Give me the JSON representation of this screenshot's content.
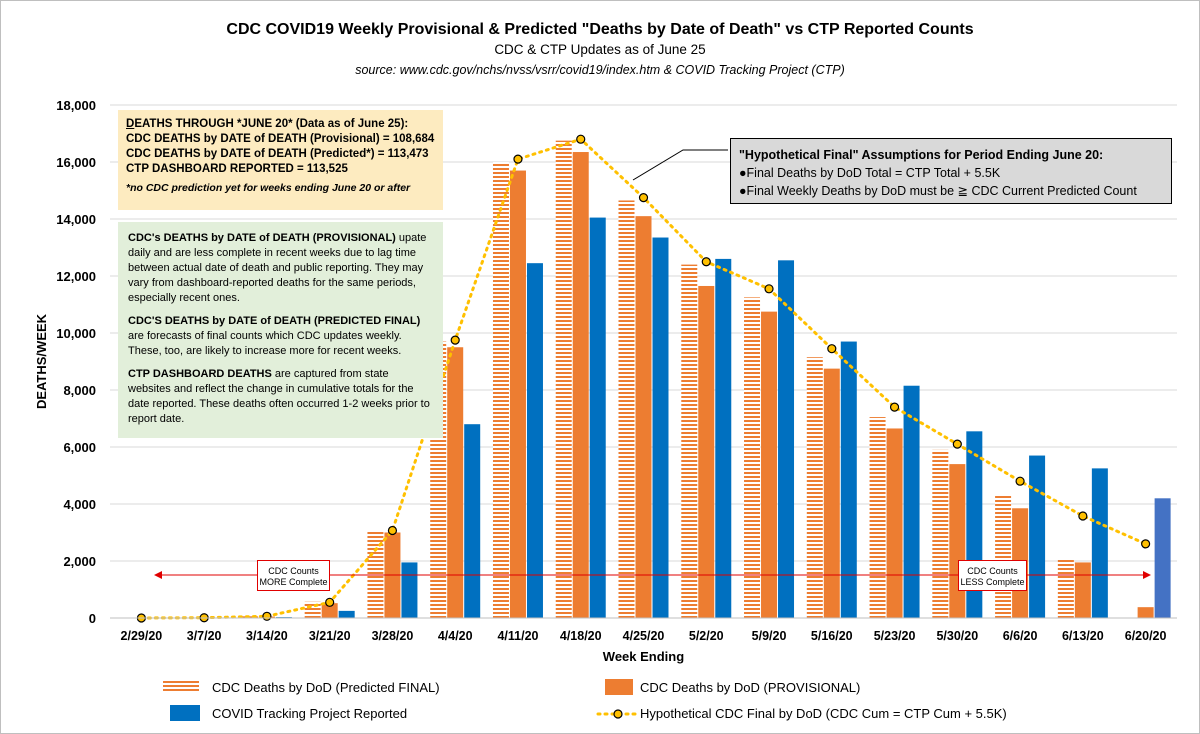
{
  "title": "CDC COVID19 Weekly Provisional & Predicted \"Deaths by Date of Death\" vs CTP Reported Counts",
  "subtitle": "CDC & CTP Updates as of June 25",
  "source": "source: www.cdc.gov/nchs/nvss/vsrr/covid19/index.htm & COVID Tracking Project (CTP)",
  "colors": {
    "predicted_final": "#ed7d31",
    "provisional": "#ed7d31",
    "ctp": "#0070c0",
    "ctp_last": "#4472c4",
    "hypothetical": "#ffc000",
    "gridline": "#d9d9d9"
  },
  "chart_data": {
    "type": "bar",
    "xlabel": "Week Ending",
    "ylabel": "DEATHS/WEEK",
    "ylim": [
      0,
      18000
    ],
    "yticks": [
      "0",
      "2,000",
      "4,000",
      "6,000",
      "8,000",
      "10,000",
      "12,000",
      "14,000",
      "16,000",
      "18,000"
    ],
    "ytick_values": [
      0,
      2000,
      4000,
      6000,
      8000,
      10000,
      12000,
      14000,
      16000,
      18000
    ],
    "grid": true,
    "legend_position": "bottom",
    "categories": [
      "2/29/20",
      "3/7/20",
      "3/14/20",
      "3/21/20",
      "3/28/20",
      "4/4/20",
      "4/11/20",
      "4/18/20",
      "4/25/20",
      "5/2/20",
      "5/9/20",
      "5/16/20",
      "5/23/20",
      "5/30/20",
      "6/6/20",
      "6/13/20",
      "6/20/20"
    ],
    "series": [
      {
        "name": "CDC Deaths by DoD (Predicted FINAL)",
        "style": "bar-striped",
        "values": [
          0,
          10,
          60,
          570,
          3070,
          9700,
          16000,
          16750,
          14650,
          12400,
          11250,
          9150,
          7050,
          5900,
          4350,
          2100,
          null
        ]
      },
      {
        "name": "CDC Deaths by DoD (PROVISIONAL)",
        "style": "bar",
        "values": [
          0,
          10,
          50,
          520,
          3000,
          9500,
          15700,
          16350,
          14100,
          11650,
          10750,
          8750,
          6650,
          5400,
          3850,
          1950,
          380
        ]
      },
      {
        "name": "COVID Tracking Project Reported",
        "style": "bar",
        "values": [
          0,
          5,
          30,
          250,
          1950,
          6800,
          12450,
          14050,
          13350,
          12600,
          12550,
          9700,
          8150,
          6550,
          5700,
          5250,
          4200
        ]
      },
      {
        "name": "Hypothetical CDC Final by DoD (CDC Cum = CTP Cum + 5.5K)",
        "style": "line-dotted",
        "values": [
          0,
          10,
          60,
          550,
          3070,
          9750,
          16100,
          16800,
          14750,
          12500,
          11550,
          9450,
          7400,
          6100,
          4800,
          3580,
          2600
        ]
      }
    ],
    "annotations": {
      "more_complete_line1": "CDC  Counts",
      "more_complete_line2": "MORE Complete",
      "less_complete_line1": "CDC Counts",
      "less_complete_line2": "LESS Complete"
    }
  },
  "notes": {
    "yellow": {
      "heading_underlined": "D",
      "heading_rest": "EATHS THROUGH *JUNE 20* (Data as of June 25):",
      "line1": "CDC DEATHS by DATE of DEATH (Provisional) = 108,684",
      "line2": "CDC DEATHS by DATE of DEATH (Predicted*) = 113,473",
      "line3": "CTP DASHBOARD REPORTED = 113,525",
      "footnote": "*no CDC prediction yet for weeks ending June 20 or after"
    },
    "green": {
      "p1_bold": "CDC's DEATHS by DATE of DEATH (PROVISIONAL)",
      "p1_rest": " upate daily and are less complete in recent weeks due to lag time between actual date of death and public reporting. They may vary from dashboard-reported deaths for the same periods, especially recent ones.",
      "p2_bold": "CDC'S DEATHS by DATE of DEATH (PREDICTED FINAL)",
      "p2_rest": " are forecasts of final counts which CDC updates weekly. These, too, are likely to increase more for recent weeks.",
      "p3_bold": "CTP DASHBOARD DEATHS",
      "p3_rest": " are captured from state websites and reflect the change in cumulative totals for the date reported. These deaths often occurred 1-2 weeks prior to report date."
    },
    "gray": {
      "heading": "\"Hypothetical Final\" Assumptions for Period Ending June 20:",
      "bullet1": "●Final Deaths by DoD Total = CTP Total + 5.5K",
      "bullet2": "●Final Weekly Deaths by DoD must be ≧ CDC Current Predicted Count"
    }
  }
}
